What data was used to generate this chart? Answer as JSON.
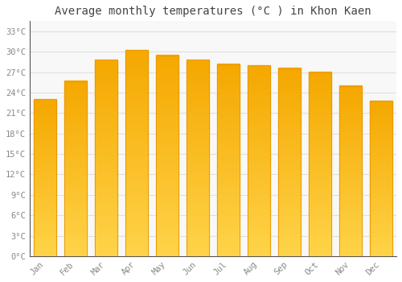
{
  "title": "Average monthly temperatures (°C ) in Khon Kaen",
  "months": [
    "Jan",
    "Feb",
    "Mar",
    "Apr",
    "May",
    "Jun",
    "Jul",
    "Aug",
    "Sep",
    "Oct",
    "Nov",
    "Dec"
  ],
  "values": [
    23.0,
    25.7,
    28.8,
    30.3,
    29.5,
    28.8,
    28.2,
    28.0,
    27.6,
    27.0,
    25.0,
    22.8
  ],
  "bar_color_bottom": "#FFD44A",
  "bar_color_top": "#F5A800",
  "bar_edge_color": "#E69500",
  "bg_color": "#FFFFFF",
  "plot_bg_color": "#F8F8F8",
  "grid_color": "#E0E0E0",
  "yticks": [
    0,
    3,
    6,
    9,
    12,
    15,
    18,
    21,
    24,
    27,
    30,
    33
  ],
  "ylim": [
    0,
    34.5
  ],
  "title_fontsize": 10,
  "tick_fontsize": 7.5,
  "tick_color": "#888888",
  "font_family": "monospace"
}
